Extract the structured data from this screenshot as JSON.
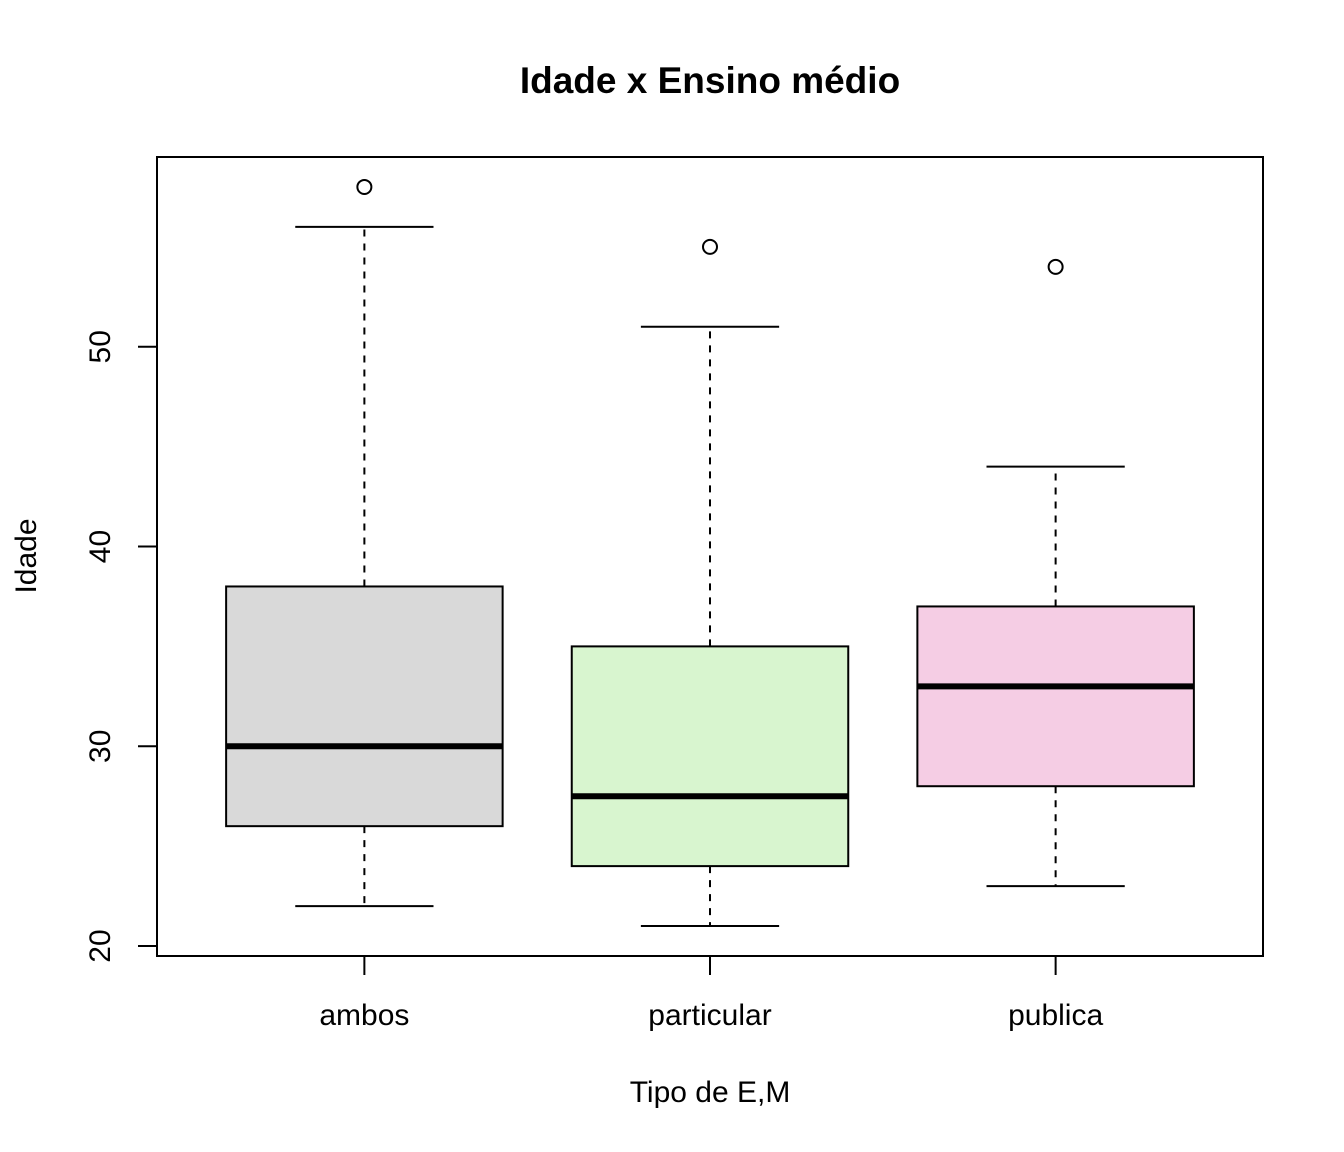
{
  "chart_data": {
    "type": "boxplot",
    "title": "Idade x Ensino médio",
    "xlabel": "Tipo de E,M",
    "ylabel": "Idade",
    "ylim": [
      19.5,
      59.5
    ],
    "yticks": [
      20,
      30,
      40,
      50
    ],
    "grid": false,
    "legend": "none",
    "categories": [
      "ambos",
      "particular",
      "publica"
    ],
    "boxes": [
      {
        "category": "ambos",
        "whisker_low": 22,
        "q1": 26,
        "median": 30,
        "q3": 38,
        "whisker_high": 56,
        "outliers": [
          58
        ],
        "color": "#d9d9d9"
      },
      {
        "category": "particular",
        "whisker_low": 21,
        "q1": 24,
        "median": 27.5,
        "q3": 35,
        "whisker_high": 51,
        "outliers": [
          55
        ],
        "color": "#d8f5cf"
      },
      {
        "category": "publica",
        "whisker_low": 23,
        "q1": 28,
        "median": 33,
        "q3": 37,
        "whisker_high": 44,
        "outliers": [
          54
        ],
        "color": "#f5cde4"
      }
    ]
  }
}
